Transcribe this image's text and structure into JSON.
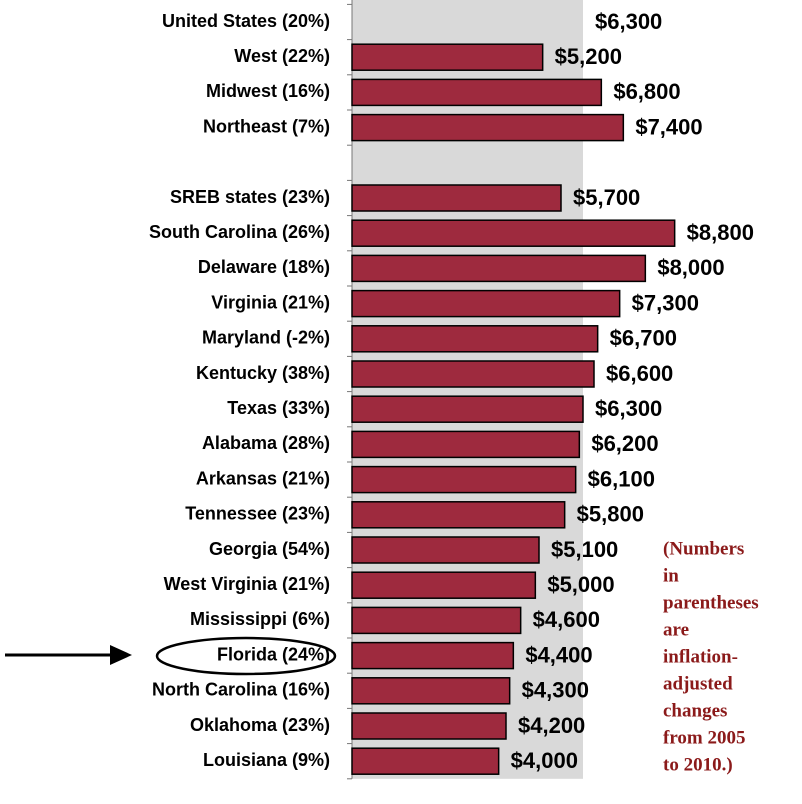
{
  "chart_data": {
    "type": "barh",
    "categories": [
      "United States (20%)",
      "West (22%)",
      "Midwest (16%)",
      "Northeast (7%)",
      null,
      "SREB states (23%)",
      "South Carolina (26%)",
      "Delaware (18%)",
      "Virginia (21%)",
      "Maryland (-2%)",
      "Kentucky (38%)",
      "Texas (33%)",
      "Alabama (28%)",
      "Arkansas (21%)",
      "Tennessee (23%)",
      "Georgia (54%)",
      "West Virginia (21%)",
      "Mississippi (6%)",
      "Florida (24%)",
      "North Carolina (16%)",
      "Oklahoma (23%)",
      "Louisiana (9%)"
    ],
    "values": [
      6300,
      5200,
      6800,
      7400,
      null,
      5700,
      8800,
      8000,
      7300,
      6700,
      6600,
      6300,
      6200,
      6100,
      5800,
      5100,
      5000,
      4600,
      4400,
      4300,
      4200,
      4000
    ],
    "value_labels": [
      "$6,300",
      "$5,200",
      "$6,800",
      "$7,400",
      null,
      "$5,700",
      "$8,800",
      "$8,000",
      "$7,300",
      "$6,700",
      "$6,600",
      "$6,300",
      "$6,200",
      "$6,100",
      "$5,800",
      "$5,100",
      "$5,000",
      "$4,600",
      "$4,400",
      "$4,300",
      "$4,200",
      "$4,000"
    ],
    "color": "#9e2a3e",
    "reference_color": "#d9d9d9",
    "xlim": [
      0,
      12000
    ],
    "annotation_lines": [
      "(Numbers",
      "in",
      "parentheses",
      "are",
      "inflation-",
      "adjusted",
      "changes",
      "from 2005",
      "to 2010.)"
    ]
  }
}
